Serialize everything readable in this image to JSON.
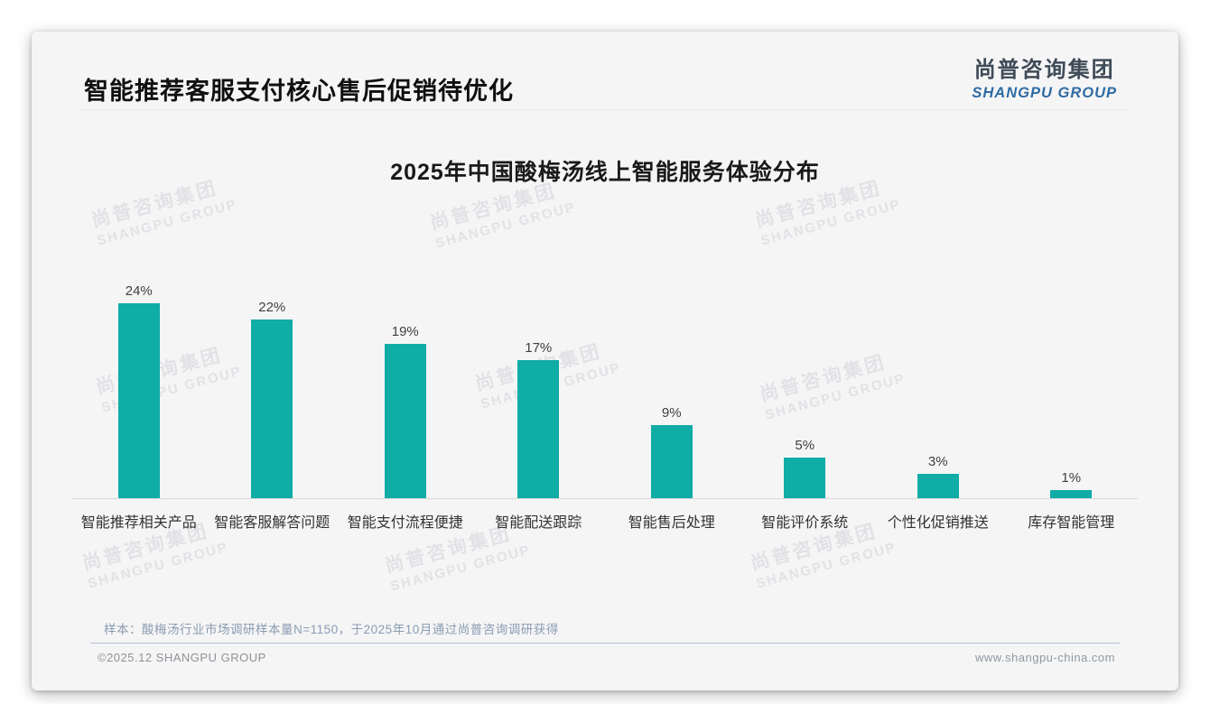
{
  "header": {
    "title": "智能推荐客服支付核心售后促销待优化",
    "logo_cn": "尚普咨询集团",
    "logo_en": "SHANGPU GROUP"
  },
  "watermark": {
    "line1": "尚普咨询集团",
    "line2": "SHANGPU GROUP"
  },
  "chart_data": {
    "type": "bar",
    "title": "2025年中国酸梅汤线上智能服务体验分布",
    "categories": [
      "智能推荐相关产品",
      "智能客服解答问题",
      "智能支付流程便捷",
      "智能配送跟踪",
      "智能售后处理",
      "智能评价系统",
      "个性化促销推送",
      "库存智能管理"
    ],
    "values": [
      24,
      22,
      19,
      17,
      9,
      5,
      3,
      1
    ],
    "unit": "%",
    "value_labels": [
      "24%",
      "22%",
      "19%",
      "17%",
      "9%",
      "5%",
      "3%",
      "1%"
    ],
    "xlabel": "",
    "ylabel": "",
    "ylim": [
      0,
      26
    ],
    "grid": false,
    "legend": false,
    "bar_color": "#10aca6",
    "axis_line_color": "#d9d9da"
  },
  "footnote": "样本：酸梅汤行业市场调研样本量N=1150，于2025年10月通过尚普咨询调研获得",
  "footer": {
    "left": "©2025.12 SHANGPU GROUP",
    "right": "www.shangpu-china.com"
  }
}
